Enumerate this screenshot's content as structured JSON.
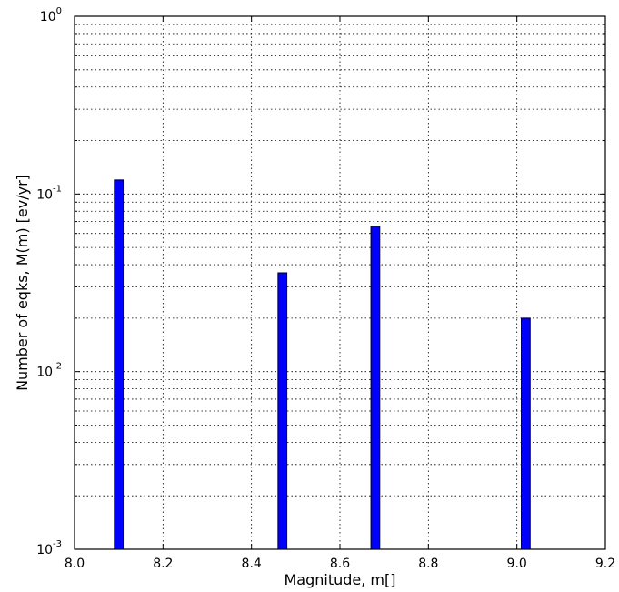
{
  "chart_data": {
    "type": "bar",
    "title": "",
    "xlabel": "Magnitude, m[]",
    "ylabel": "Number of eqks, M(m) [ev/yr]",
    "x_range": [
      8.0,
      9.2
    ],
    "y_range": [
      0.001,
      1
    ],
    "y_scale": "log",
    "grid": true,
    "x_ticks": [
      "8.0",
      "8.2",
      "8.4",
      "8.6",
      "8.8",
      "9.0",
      "9.2"
    ],
    "y_ticks": [
      {
        "base": "10",
        "exp": "-3",
        "value": 0.001
      },
      {
        "base": "10",
        "exp": "-2",
        "value": 0.01
      },
      {
        "base": "10",
        "exp": "-1",
        "value": 0.1
      },
      {
        "base": "10",
        "exp": "0",
        "value": 1
      }
    ],
    "bar_width": 0.02,
    "bar_color": "#0000ff",
    "bars": [
      {
        "x": 8.1,
        "y": 0.12
      },
      {
        "x": 8.47,
        "y": 0.036
      },
      {
        "x": 8.68,
        "y": 0.066
      },
      {
        "x": 9.02,
        "y": 0.02
      }
    ]
  }
}
